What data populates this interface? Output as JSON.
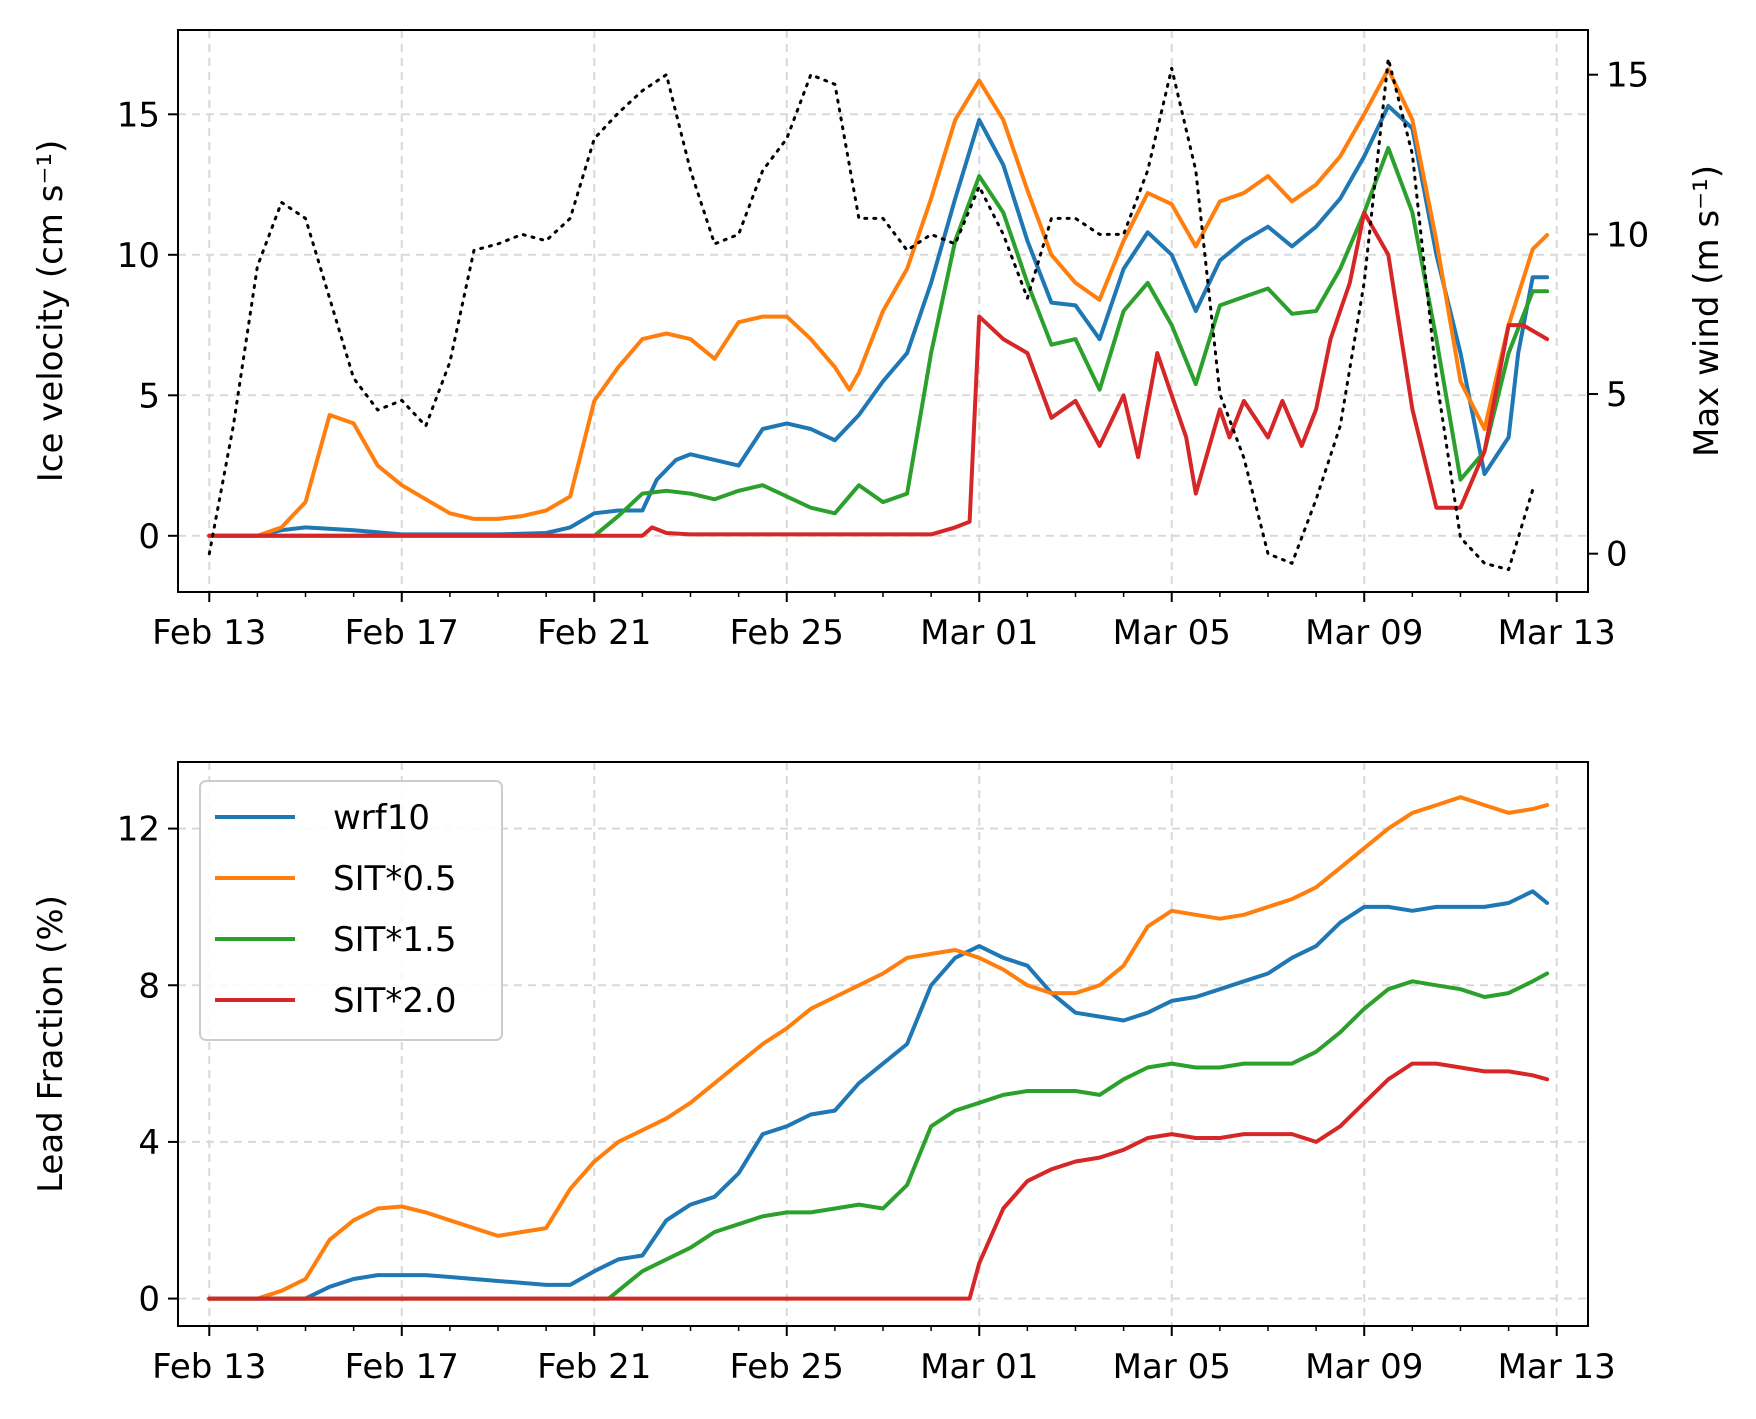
{
  "chart_data": [
    {
      "type": "line",
      "ylabel": "Ice velocity (cm s⁻¹)",
      "y2label": "Max wind (m s⁻¹)",
      "ylim": [
        -2.0,
        18.0
      ],
      "y2lim": [
        -1.2,
        16.4
      ],
      "yticks": [
        0,
        5,
        10,
        15
      ],
      "y2ticks": [
        0,
        5,
        10,
        15
      ],
      "xlim": [
        -0.65,
        28.65
      ],
      "x_tick_labels": [
        "Feb 13",
        "Feb 17",
        "Feb 21",
        "Feb 25",
        "Mar 01",
        "Mar 05",
        "Mar 09",
        "Mar 13"
      ],
      "x_tick_days": [
        0,
        4,
        8,
        12,
        16,
        20,
        24,
        28
      ],
      "grid": true,
      "x_unit": "days from Feb 13",
      "series": [
        {
          "name": "wrf10",
          "color": "#1f77b4",
          "axis": "left",
          "x": [
            0,
            1,
            1.5,
            2,
            3,
            4,
            6,
            7,
            7.5,
            8,
            8.5,
            9,
            9.3,
            9.7,
            10,
            10.5,
            11,
            11.5,
            12,
            12.5,
            13,
            13.5,
            14,
            14.5,
            15,
            15.5,
            16,
            16.5,
            17,
            17.5,
            18,
            18.5,
            19,
            19.5,
            20,
            20.5,
            21,
            21.5,
            22,
            22.5,
            23,
            23.5,
            24,
            24.5,
            25,
            25.5,
            26,
            26.5,
            27,
            27.2,
            27.5,
            27.8
          ],
          "y": [
            0,
            0,
            0.2,
            0.3,
            0.2,
            0.05,
            0.05,
            0.1,
            0.3,
            0.8,
            0.9,
            0.9,
            2.0,
            2.7,
            2.9,
            2.7,
            2.5,
            3.8,
            4.0,
            3.8,
            3.4,
            4.3,
            5.5,
            6.5,
            9.0,
            12.0,
            14.8,
            13.2,
            10.5,
            8.3,
            8.2,
            7.0,
            9.5,
            10.8,
            10.0,
            8.0,
            9.8,
            10.5,
            11.0,
            10.3,
            11.0,
            12.0,
            13.5,
            15.3,
            14.5,
            10.0,
            6.5,
            2.2,
            3.5,
            6.5,
            9.2,
            9.2
          ]
        },
        {
          "name": "SIT*0.5",
          "color": "#ff7f0e",
          "axis": "left",
          "x": [
            0,
            1,
            1.5,
            2,
            2.5,
            3,
            3.5,
            4,
            4.5,
            5,
            5.5,
            6,
            6.5,
            7,
            7.5,
            8,
            8.5,
            9,
            9.5,
            10,
            10.5,
            11,
            11.5,
            12,
            12.5,
            13,
            13.3,
            13.5,
            14,
            14.5,
            15,
            15.5,
            16,
            16.5,
            17,
            17.5,
            18,
            18.5,
            19,
            19.5,
            20,
            20.5,
            21,
            21.5,
            22,
            22.5,
            23,
            23.5,
            24,
            24.5,
            25,
            25.5,
            26,
            26.5,
            27,
            27.5,
            27.8
          ],
          "y": [
            0,
            0,
            0.3,
            1.2,
            4.3,
            4.0,
            2.5,
            1.8,
            1.3,
            0.8,
            0.6,
            0.6,
            0.7,
            0.9,
            1.4,
            4.8,
            6.0,
            7.0,
            7.2,
            7.0,
            6.3,
            7.6,
            7.8,
            7.8,
            7.0,
            6.0,
            5.2,
            5.8,
            8.0,
            9.5,
            12.0,
            14.8,
            16.2,
            14.8,
            12.3,
            10.0,
            9.0,
            8.4,
            10.5,
            12.2,
            11.8,
            10.3,
            11.9,
            12.2,
            12.8,
            11.9,
            12.5,
            13.5,
            15.0,
            16.6,
            14.8,
            10.5,
            5.5,
            3.8,
            7.5,
            10.2,
            10.7
          ]
        },
        {
          "name": "SIT*1.5",
          "color": "#2ca02c",
          "axis": "left",
          "x": [
            0,
            1,
            2,
            3,
            4,
            5,
            6,
            7,
            8,
            8.5,
            9,
            9.5,
            10,
            10.5,
            11,
            11.5,
            12,
            12.5,
            13,
            13.5,
            14,
            14.5,
            15,
            15.5,
            16,
            16.5,
            17,
            17.5,
            18,
            18.5,
            19,
            19.5,
            20,
            20.5,
            21,
            21.5,
            22,
            22.5,
            23,
            23.5,
            24,
            24.5,
            25,
            25.5,
            26,
            26.5,
            27,
            27.5,
            27.8
          ],
          "y": [
            0,
            0,
            0,
            0,
            0,
            0,
            0,
            0,
            0,
            0.7,
            1.5,
            1.6,
            1.5,
            1.3,
            1.6,
            1.8,
            1.4,
            1.0,
            0.8,
            1.8,
            1.2,
            1.5,
            6.5,
            10.5,
            12.8,
            11.5,
            9.0,
            6.8,
            7.0,
            5.2,
            8.0,
            9.0,
            7.5,
            5.4,
            8.2,
            8.5,
            8.8,
            7.9,
            8.0,
            9.5,
            11.5,
            13.8,
            11.5,
            7.0,
            2.0,
            3.0,
            6.5,
            8.7,
            8.7
          ]
        },
        {
          "name": "SIT*2.0",
          "color": "#d62728",
          "axis": "left",
          "x": [
            0,
            1,
            2,
            3,
            4,
            5,
            6,
            7,
            8,
            9,
            9.2,
            9.5,
            10,
            11,
            12,
            13,
            14,
            15,
            15.5,
            15.8,
            16,
            16.5,
            17,
            17.5,
            18,
            18.5,
            19,
            19.3,
            19.7,
            20,
            20.3,
            20.5,
            21,
            21.2,
            21.5,
            22,
            22.3,
            22.7,
            23,
            23.3,
            23.7,
            24,
            24.5,
            25,
            25.5,
            26,
            26.5,
            27,
            27.3,
            27.8
          ],
          "y": [
            0,
            0,
            0,
            0,
            0,
            0,
            0,
            0,
            0,
            0,
            0.3,
            0.1,
            0.05,
            0.05,
            0.05,
            0.05,
            0.05,
            0.05,
            0.3,
            0.5,
            7.8,
            7.0,
            6.5,
            4.2,
            4.8,
            3.2,
            5.0,
            2.8,
            6.5,
            5.0,
            3.5,
            1.5,
            4.5,
            3.5,
            4.8,
            3.5,
            4.8,
            3.2,
            4.5,
            7.0,
            9.0,
            11.5,
            10.0,
            4.5,
            1.0,
            1.0,
            3.0,
            7.5,
            7.5,
            7.0
          ]
        },
        {
          "name": "",
          "color": "#000000",
          "dash": "dotted",
          "axis": "right",
          "x": [
            0,
            0.5,
            1,
            1.5,
            2,
            2.5,
            3,
            3.5,
            4,
            4.5,
            5,
            5.5,
            6,
            6.5,
            7,
            7.5,
            8,
            8.5,
            9,
            9.5,
            10,
            10.5,
            11,
            11.5,
            12,
            12.5,
            13,
            13.5,
            14,
            14.5,
            15,
            15.5,
            16,
            16.5,
            17,
            17.5,
            18,
            18.5,
            19,
            19.5,
            20,
            20.5,
            21,
            21.5,
            22,
            22.5,
            23,
            23.5,
            24,
            24.5,
            25,
            25.5,
            26,
            26.5,
            27,
            27.5
          ],
          "y": [
            0,
            4,
            9,
            11,
            10.5,
            8,
            5.5,
            4.5,
            4.8,
            4,
            6,
            9.5,
            9.7,
            10,
            9.8,
            10.5,
            13,
            13.8,
            14.5,
            15,
            12,
            9.7,
            10,
            12,
            13,
            15,
            14.7,
            10.5,
            10.5,
            9.5,
            10,
            9.7,
            11.5,
            10,
            8,
            10.5,
            10.5,
            10,
            10,
            12,
            15.2,
            12,
            5,
            3,
            0,
            -0.3,
            1.7,
            4,
            8.5,
            15.5,
            12.5,
            5.5,
            0.5,
            -0.3,
            -0.5,
            2
          ]
        }
      ]
    },
    {
      "type": "line",
      "ylabel": "Lead Fraction (%)",
      "ylim": [
        -0.7,
        13.7
      ],
      "yticks": [
        0,
        4,
        8,
        12
      ],
      "xlim": [
        -0.65,
        28.65
      ],
      "x_tick_labels": [
        "Feb 13",
        "Feb 17",
        "Feb 21",
        "Feb 25",
        "Mar 01",
        "Mar 05",
        "Mar 09",
        "Mar 13"
      ],
      "x_tick_days": [
        0,
        4,
        8,
        12,
        16,
        20,
        24,
        28
      ],
      "grid": true,
      "x_unit": "days from Feb 13",
      "legend": {
        "placement": "upper-left",
        "entries": [
          "wrf10",
          "SIT*0.5",
          "SIT*1.5",
          "SIT*2.0"
        ]
      },
      "series": [
        {
          "name": "wrf10",
          "color": "#1f77b4",
          "x": [
            0,
            1,
            2,
            2.5,
            3,
            3.5,
            4,
            4.5,
            5,
            5.5,
            6,
            6.5,
            7,
            7.5,
            8,
            8.5,
            9,
            9.5,
            10,
            10.5,
            11,
            11.5,
            12,
            12.5,
            13,
            13.5,
            14,
            14.5,
            15,
            15.5,
            16,
            16.5,
            17,
            17.5,
            18,
            18.5,
            19,
            19.5,
            20,
            20.5,
            21,
            21.5,
            22,
            22.5,
            23,
            23.5,
            24,
            24.5,
            25,
            25.5,
            26,
            26.5,
            27,
            27.5,
            27.8
          ],
          "y": [
            0,
            0,
            0,
            0.3,
            0.5,
            0.6,
            0.6,
            0.6,
            0.55,
            0.5,
            0.45,
            0.4,
            0.35,
            0.35,
            0.7,
            1.0,
            1.1,
            2.0,
            2.4,
            2.6,
            3.2,
            4.2,
            4.4,
            4.7,
            4.8,
            5.5,
            6.0,
            6.5,
            8.0,
            8.7,
            9.0,
            8.7,
            8.5,
            7.8,
            7.3,
            7.2,
            7.1,
            7.3,
            7.6,
            7.7,
            7.9,
            8.1,
            8.3,
            8.7,
            9.0,
            9.6,
            10.0,
            10.0,
            9.9,
            10.0,
            10.0,
            10.0,
            10.1,
            10.4,
            10.1
          ]
        },
        {
          "name": "SIT*0.5",
          "color": "#ff7f0e",
          "x": [
            0,
            1,
            1.5,
            2,
            2.5,
            3,
            3.5,
            4,
            4.5,
            5,
            5.5,
            6,
            6.5,
            7,
            7.5,
            8,
            8.5,
            9,
            9.5,
            10,
            10.5,
            11,
            11.5,
            12,
            12.5,
            13,
            13.5,
            14,
            14.5,
            15,
            15.5,
            16,
            16.5,
            17,
            17.5,
            18,
            18.5,
            19,
            19.5,
            20,
            20.5,
            21,
            21.5,
            22,
            22.5,
            23,
            23.5,
            24,
            24.5,
            25,
            25.5,
            26,
            26.5,
            27,
            27.5,
            27.8
          ],
          "y": [
            0,
            0,
            0.2,
            0.5,
            1.5,
            2.0,
            2.3,
            2.35,
            2.2,
            2.0,
            1.8,
            1.6,
            1.7,
            1.8,
            2.8,
            3.5,
            4.0,
            4.3,
            4.6,
            5.0,
            5.5,
            6.0,
            6.5,
            6.9,
            7.4,
            7.7,
            8.0,
            8.3,
            8.7,
            8.8,
            8.9,
            8.7,
            8.4,
            8.0,
            7.8,
            7.8,
            8.0,
            8.5,
            9.5,
            9.9,
            9.8,
            9.7,
            9.8,
            10.0,
            10.2,
            10.5,
            11.0,
            11.5,
            12.0,
            12.4,
            12.6,
            12.8,
            12.6,
            12.4,
            12.5,
            12.6
          ]
        },
        {
          "name": "SIT*1.5",
          "color": "#2ca02c",
          "x": [
            0,
            1,
            2,
            3,
            4,
            5,
            6,
            7,
            8,
            8.3,
            8.7,
            9,
            9.5,
            10,
            10.5,
            11,
            11.5,
            12,
            12.5,
            13,
            13.5,
            14,
            14.5,
            15,
            15.5,
            16,
            16.5,
            17,
            17.5,
            18,
            18.5,
            19,
            19.5,
            20,
            20.5,
            21,
            21.5,
            22,
            22.5,
            23,
            23.5,
            24,
            24.5,
            25,
            25.5,
            26,
            26.5,
            27,
            27.5,
            27.8
          ],
          "y": [
            0,
            0,
            0,
            0,
            0,
            0,
            0,
            0,
            0,
            0,
            0.4,
            0.7,
            1.0,
            1.3,
            1.7,
            1.9,
            2.1,
            2.2,
            2.2,
            2.3,
            2.4,
            2.3,
            2.9,
            4.4,
            4.8,
            5.0,
            5.2,
            5.3,
            5.3,
            5.3,
            5.2,
            5.6,
            5.9,
            6.0,
            5.9,
            5.9,
            6.0,
            6.0,
            6.0,
            6.3,
            6.8,
            7.4,
            7.9,
            8.1,
            8.0,
            7.9,
            7.7,
            7.8,
            8.1,
            8.3
          ]
        },
        {
          "name": "SIT*2.0",
          "color": "#d62728",
          "x": [
            0,
            1,
            2,
            3,
            4,
            5,
            6,
            7,
            8,
            9,
            10,
            11,
            12,
            13,
            14,
            15,
            15.5,
            15.8,
            16,
            16.5,
            17,
            17.5,
            18,
            18.5,
            19,
            19.5,
            20,
            20.5,
            21,
            21.5,
            22,
            22.5,
            23,
            23.5,
            24,
            24.5,
            25,
            25.5,
            26,
            26.5,
            27,
            27.5,
            27.8
          ],
          "y": [
            0,
            0,
            0,
            0,
            0,
            0,
            0,
            0,
            0,
            0,
            0,
            0,
            0,
            0,
            0,
            0,
            0,
            0,
            0.9,
            2.3,
            3.0,
            3.3,
            3.5,
            3.6,
            3.8,
            4.1,
            4.2,
            4.1,
            4.1,
            4.2,
            4.2,
            4.2,
            4.0,
            4.4,
            5.0,
            5.6,
            6.0,
            6.0,
            5.9,
            5.8,
            5.8,
            5.7,
            5.6
          ]
        }
      ]
    }
  ]
}
